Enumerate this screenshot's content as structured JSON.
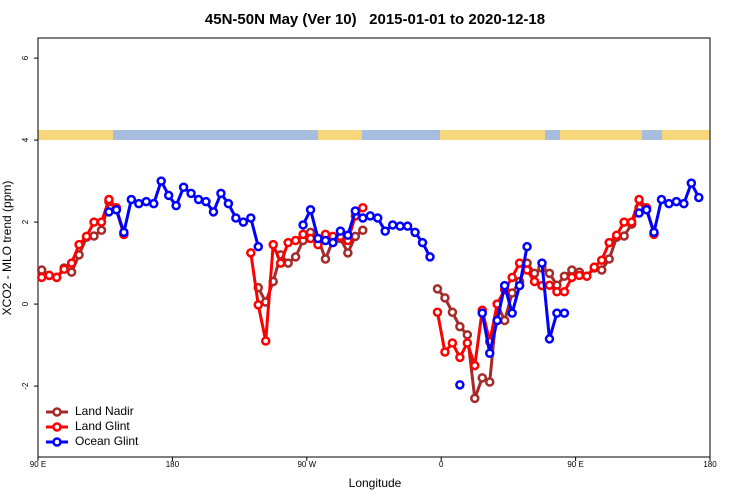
{
  "chart_data": {
    "type": "line",
    "title": "45N-50N May (Ver 10)   2015-01-01 to 2020-12-18",
    "xlabel": "Longitude",
    "ylabel": "XCO2 - MLO trend (ppm)",
    "xlim": [
      90,
      540
    ],
    "xticks": [
      {
        "value": 90,
        "label": "90 E"
      },
      180,
      {
        "value": 270,
        "label": "90 W"
      },
      {
        "value": 360,
        "label": "0"
      },
      {
        "value": 450,
        "label": "90 E"
      },
      {
        "value": 540,
        "label": "180"
      }
    ],
    "ylim": [
      -3.73,
      6.49
    ],
    "yticks": [
      -2,
      0,
      2,
      4,
      6
    ],
    "legend": "bottom-left",
    "x": [
      92.5,
      97.5,
      102.5,
      107.5,
      112.5,
      117.5,
      122.5,
      127.5,
      132.5,
      137.5,
      142.5,
      147.5,
      152.5,
      157.5,
      162.5,
      167.5,
      172.5,
      177.5,
      182.5,
      187.5,
      192.5,
      197.5,
      202.5,
      207.5,
      212.5,
      217.5,
      222.5,
      227.5,
      232.5,
      237.5,
      242.5,
      247.5,
      252.5,
      257.5,
      262.5,
      267.5,
      272.5,
      277.5,
      282.5,
      287.5,
      292.5,
      297.5,
      302.5,
      307.5,
      312.5,
      317.5,
      322.5,
      327.5,
      332.5,
      337.5,
      342.5,
      347.5,
      352.5,
      357.5,
      362.5,
      367.5,
      372.5,
      377.5,
      382.5,
      387.5,
      392.5,
      397.5,
      402.5,
      407.5,
      412.5,
      417.5,
      422.5,
      427.5,
      432.5,
      437.5,
      442.5,
      447.5,
      452.5,
      457.5,
      462.5,
      467.5,
      472.5,
      477.5,
      482.5,
      487.5,
      492.5,
      497.5,
      502.5,
      507.5,
      512.5,
      517.5,
      522.5,
      527.5,
      532.5
    ],
    "series": [
      {
        "name": "Land Nadir",
        "color": "#a52a2a",
        "values": [
          0.83,
          0.7,
          0.65,
          0.88,
          0.78,
          1.2,
          1.63,
          1.66,
          1.8,
          2.5,
          2.3,
          1.7,
          null,
          null,
          null,
          null,
          null,
          null,
          null,
          null,
          null,
          null,
          null,
          null,
          null,
          null,
          null,
          null,
          null,
          0.4,
          0.05,
          0.55,
          1.2,
          1,
          1.15,
          1.55,
          1.75,
          1.6,
          1.1,
          1.55,
          1.6,
          1.25,
          1.65,
          1.8,
          null,
          null,
          null,
          null,
          null,
          null,
          null,
          null,
          null,
          0.37,
          0.15,
          -0.2,
          -0.55,
          -0.75,
          -2.3,
          -1.8,
          -1.9,
          0,
          -0.4,
          0.27,
          0.55,
          1,
          0.75,
          0.88,
          0.75,
          0.46,
          0.68,
          0.83,
          0.78,
          0.68,
          0.88,
          0.83,
          1.1,
          1.63,
          1.66,
          1.95,
          2.35,
          2.3,
          1.75,
          null,
          null,
          null,
          null,
          null,
          null
        ]
      },
      {
        "name": "Land Glint",
        "color": "#ff0000",
        "values": [
          0.65,
          0.7,
          0.65,
          0.85,
          1,
          1.45,
          1.65,
          2,
          2,
          2.55,
          2.35,
          1.7,
          null,
          null,
          null,
          null,
          null,
          null,
          null,
          null,
          null,
          null,
          null,
          null,
          null,
          null,
          null,
          null,
          1.25,
          -0.02,
          -0.9,
          1.45,
          1,
          1.5,
          1.55,
          1.7,
          1.6,
          1.45,
          1.7,
          1.65,
          1.65,
          1.55,
          2.15,
          2.35,
          null,
          null,
          null,
          null,
          null,
          null,
          null,
          null,
          null,
          -0.2,
          -1.17,
          -0.95,
          -1.3,
          -0.95,
          -1.5,
          -0.15,
          -0.92,
          0,
          0.35,
          0.65,
          1,
          0.83,
          0.55,
          0.45,
          0.46,
          0.3,
          0.3,
          0.65,
          0.7,
          0.68,
          0.9,
          1.07,
          1.5,
          1.68,
          2,
          2,
          2.55,
          2.35,
          1.7,
          null,
          null,
          null,
          null,
          null,
          null
        ]
      },
      {
        "name": "Ocean Glint",
        "color": "#0000ff",
        "values": [
          null,
          null,
          null,
          null,
          null,
          null,
          null,
          null,
          null,
          2.25,
          2.3,
          1.75,
          2.55,
          2.45,
          2.5,
          2.45,
          3,
          2.65,
          2.4,
          2.85,
          2.7,
          2.55,
          2.5,
          2.25,
          2.7,
          2.45,
          2.1,
          2,
          2.1,
          1.4,
          null,
          null,
          null,
          null,
          null,
          1.93,
          2.3,
          1.6,
          1.55,
          1.5,
          1.78,
          1.68,
          2.27,
          2.1,
          2.15,
          2.1,
          1.78,
          1.93,
          1.9,
          1.9,
          1.75,
          1.5,
          1.15,
          null,
          null,
          null,
          -1.97,
          null,
          null,
          -0.22,
          -1.2,
          -0.4,
          0.45,
          -0.22,
          0.45,
          1.4,
          null,
          1,
          -0.85,
          -0.22,
          -0.22,
          null,
          null,
          null,
          null,
          null,
          null,
          null,
          null,
          null,
          2.22,
          2.3,
          1.75,
          2.55,
          2.45,
          2.5,
          2.45,
          2.95,
          2.6
        ]
      }
    ]
  }
}
